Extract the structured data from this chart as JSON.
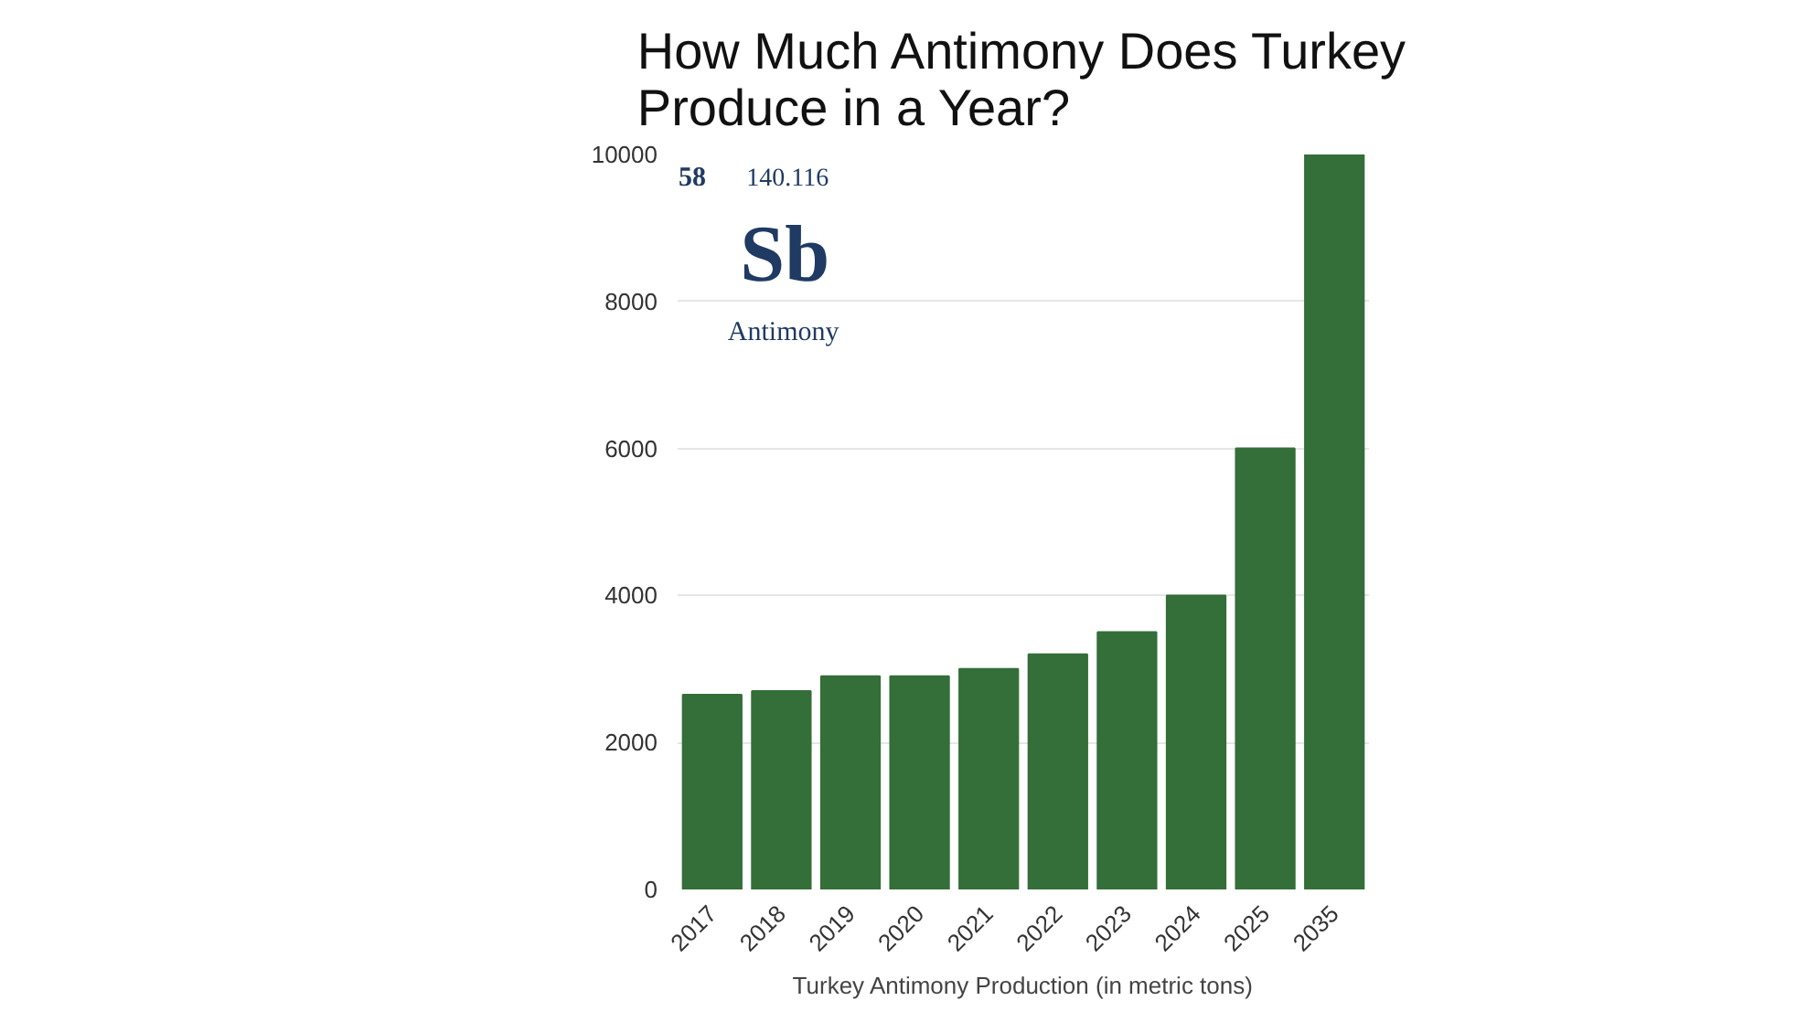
{
  "chart_data": {
    "type": "bar",
    "title": "How Much Antimony Does Turkey Produce in a Year?",
    "xlabel": "Turkey Antimony Production (in metric tons)",
    "categories": [
      "2017",
      "2018",
      "2019",
      "2020",
      "2021",
      "2022",
      "2023",
      "2024",
      "2025",
      "2035"
    ],
    "values": [
      2650,
      2700,
      2900,
      2900,
      3000,
      3200,
      3500,
      4000,
      6000,
      10000
    ],
    "color": "#346e38",
    "ylim": [
      0,
      10000
    ],
    "yticks": [
      0,
      2000,
      4000,
      6000,
      8000,
      10000
    ],
    "grid": "y",
    "annotations": [
      "58",
      "140.116",
      "Sb",
      "Antimony"
    ]
  }
}
